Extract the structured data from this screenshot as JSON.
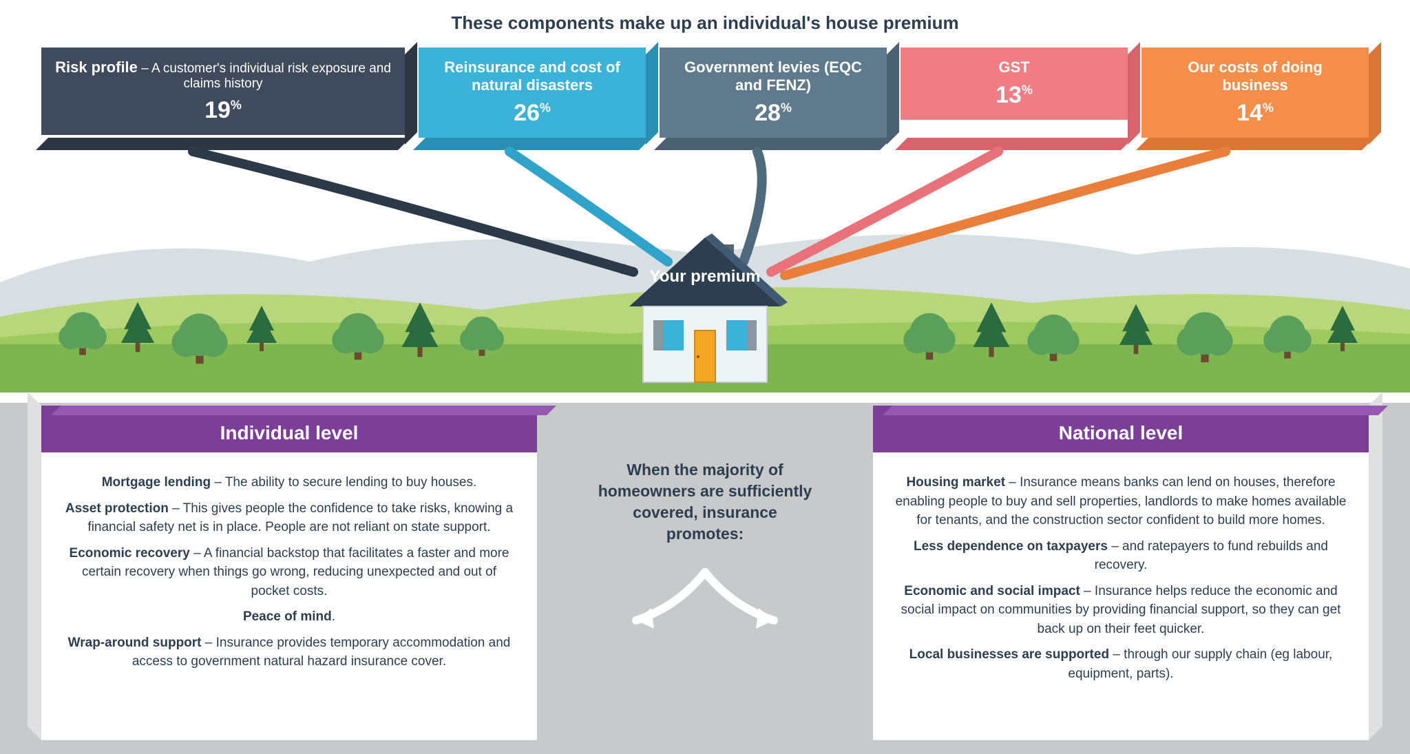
{
  "title": "These components make up an individual's house premium",
  "boxes": [
    {
      "title": "Risk profile",
      "sub": " – A customer's individual risk exposure and claims history",
      "pct": "19",
      "color": "#3f4a5c",
      "shade": "#2e3642",
      "arrow": "#2c3948"
    },
    {
      "title": "Reinsurance and cost of natural disasters",
      "sub": "",
      "pct": "26",
      "color": "#3bb3d9",
      "shade": "#2a90b3",
      "arrow": "#2fa3c9"
    },
    {
      "title": "Government levies (EQC and FENZ)",
      "sub": "",
      "pct": "28",
      "color": "#5e7a8c",
      "shade": "#4a6272",
      "arrow": "#4e6a7c"
    },
    {
      "title": "GST",
      "sub": "",
      "pct": "13",
      "color": "#f07c84",
      "shade": "#d9636c",
      "arrow": "#e8717a"
    },
    {
      "title": "Our costs of doing business",
      "sub": "",
      "pct": "14",
      "color": "#f58e4a",
      "shade": "#db7635",
      "arrow": "#e97f3b"
    }
  ],
  "house_label": "Your premium",
  "center_text": "When the majority of homeowners are sufficiently covered, insurance promotes:",
  "panels": {
    "individual": {
      "header": "Individual level",
      "header_bg": "#7b3f98",
      "items": [
        {
          "b": "Mortgage lending",
          "t": " – The ability to secure lending to buy houses."
        },
        {
          "b": "Asset protection",
          "t": " – This gives people the confidence to take risks, knowing a financial safety net is in place. People are not reliant on state support."
        },
        {
          "b": "Economic recovery",
          "t": " – A financial backstop that facilitates a faster and more certain recovery when things go wrong, reducing unexpected and out of pocket costs."
        },
        {
          "b": "Peace of mind",
          "t": "."
        },
        {
          "b": "Wrap-around support",
          "t": " – Insurance provides temporary accommodation and access to government natural hazard insurance cover."
        }
      ]
    },
    "national": {
      "header": "National level",
      "header_bg": "#7b3f98",
      "items": [
        {
          "b": "Housing market",
          "t": " – Insurance means banks can lend on houses, therefore enabling people to buy and sell properties, landlords to make homes available for tenants, and the construction sector confident to build more homes."
        },
        {
          "b": "Less dependence on taxpayers",
          "t": " – and ratepayers to fund rebuilds and recovery."
        },
        {
          "b": "Economic and social impact",
          "t": " – Insurance helps reduce the economic and social impact on communities by providing financial support, so they can get back up on their feet quicker."
        },
        {
          "b": "Local businesses are supported",
          "t": " – through our supply chain (eg labour, equipment, parts)."
        }
      ]
    }
  },
  "landscape": {
    "sky": "#ffffff",
    "mountain": "#d8dfe2",
    "hill_back": "#b8d67a",
    "hill_front": "#9ec95f",
    "grass": "#7db551",
    "tree_dark": "#2a6b3f",
    "tree_light": "#5aa05a",
    "trunk": "#6b4a30"
  },
  "house": {
    "roof": "#2c3e50",
    "roof_side": "#405a74",
    "wall": "#eef4f6",
    "window": "#3bb3d9",
    "shutter": "#8a96a0",
    "door": "#f5a623",
    "chimney": "#5a6670"
  }
}
